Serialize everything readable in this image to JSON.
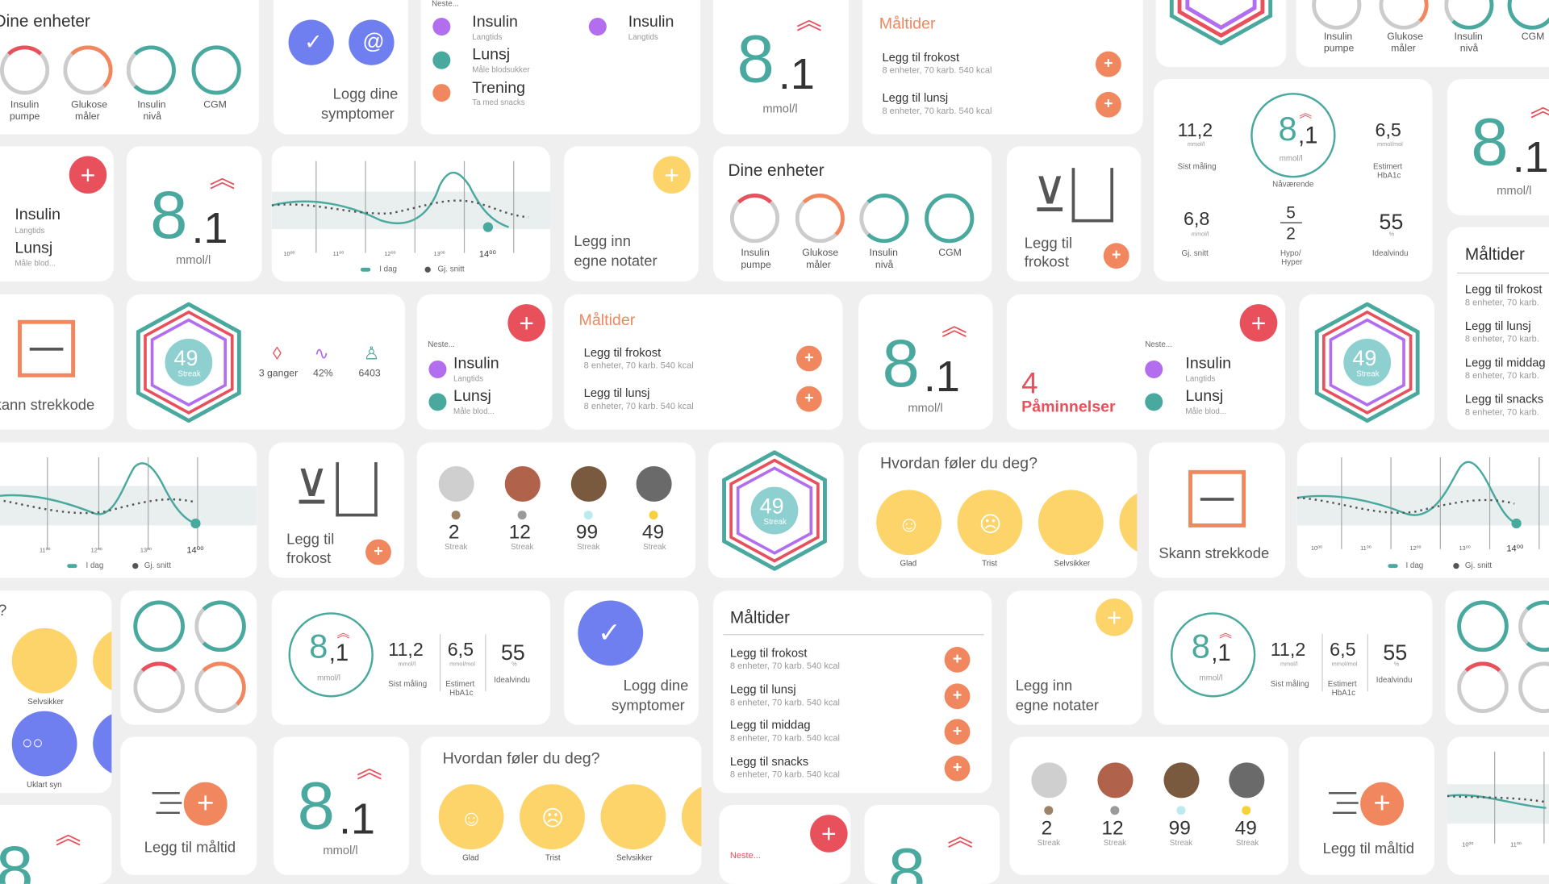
{
  "devices": {
    "title": "Dine enheter",
    "items": [
      {
        "label": "Insulin pumpe",
        "label2": "pumpe",
        "label1": "Insulin"
      },
      {
        "label1": "Glukose",
        "label2": "måler"
      },
      {
        "label1": "Insulin",
        "label2": "nivå"
      },
      {
        "label1": "CGM",
        "label2": ""
      }
    ]
  },
  "symptoms": {
    "line1": "Logg dine",
    "line2": "symptomer"
  },
  "next": {
    "prefix": "Neste...",
    "items": [
      {
        "title": "Insulin",
        "sub": "Langtids",
        "color": "#b36ef0"
      },
      {
        "title": "Lunsj",
        "sub": "Måle blodsukker",
        "sub_short": "Måle blod...",
        "color": "#4aa99e"
      },
      {
        "title": "Trening",
        "sub": "Ta med snacks",
        "color": "#f0875f"
      }
    ]
  },
  "glucose": {
    "int": "8",
    "dec": ".1",
    "dec2": ",1",
    "unit": "mmol/l",
    "trend_color": "#e8505b"
  },
  "meals": {
    "title": "Måltider",
    "items": [
      {
        "title": "Legg til frokost",
        "sub": "8 enheter, 70 karb. 540 kcal"
      },
      {
        "title": "Legg til lunsj",
        "sub": "8 enheter, 70 karb. 540 kcal"
      },
      {
        "title": "Legg til middag",
        "sub": "8 enheter, 70 karb. 540 kcal"
      },
      {
        "title": "Legg til snacks",
        "sub": "8 enheter, 70 karb. 540 kcal"
      }
    ],
    "sub_short": "8 enheter, 70 karb."
  },
  "stats": {
    "last": {
      "value": "11,2",
      "unit": "mmol/l",
      "label": "Sist måling"
    },
    "current": {
      "label": "Nåværende"
    },
    "hba1c": {
      "value": "6,5",
      "unit": "mmol/mol",
      "label": "Estimert",
      "label2": "HbA1c"
    },
    "avg": {
      "value": "6,8",
      "unit": "mmol/l",
      "label": "Gj. snitt"
    },
    "hypo": {
      "top": "5",
      "bottom": "2",
      "label": "Hypo/",
      "label2": "Hyper"
    },
    "ideal": {
      "value": "55",
      "unit": "%",
      "label": "Idealvindu"
    }
  },
  "chart": {
    "ticks": [
      "10⁰⁰",
      "11⁰⁰",
      "12⁰⁰",
      "13⁰⁰",
      "14⁰⁰"
    ],
    "legend_today": "I dag",
    "legend_avg": "Gj. snitt"
  },
  "notes": {
    "line1": "Legg inn",
    "line2": "egne notater"
  },
  "breakfast": {
    "line1": "Legg til",
    "line2": "frokost"
  },
  "scan": {
    "label": "Skann strekkode",
    "label_cut": "kann strekkode"
  },
  "streak": {
    "value": "49",
    "label": "Streak"
  },
  "activity": [
    {
      "value": "3 ganger",
      "icon": "drop-icon"
    },
    {
      "value": "42%",
      "icon": "pulse-icon"
    },
    {
      "value": "6403",
      "icon": "walk-icon"
    }
  ],
  "reminders": {
    "count": "4",
    "label": "Påminnelser"
  },
  "leaders": [
    {
      "value": "2",
      "label": "Streak",
      "dot": "#9c8368"
    },
    {
      "value": "12",
      "label": "Streak",
      "dot": "#9a9a9a"
    },
    {
      "value": "99",
      "label": "Streak",
      "dot": "#bfe9f0"
    },
    {
      "value": "49",
      "label": "Streak",
      "dot": "#f7d13b"
    }
  ],
  "feel": {
    "title": "Hvordan føler du deg?",
    "items": [
      {
        "label": "Glad"
      },
      {
        "label": "Trist"
      },
      {
        "label": "Selvsikker"
      },
      {
        "label": "Uklart syn"
      }
    ]
  },
  "addmeal": {
    "label": "Legg til måltid"
  },
  "colors": {
    "teal": "#4aa99e",
    "red": "#e8505b",
    "orange": "#f0875f",
    "purple": "#b36ef0",
    "yellow": "#fdd46a",
    "blue": "#6f7ff0"
  }
}
